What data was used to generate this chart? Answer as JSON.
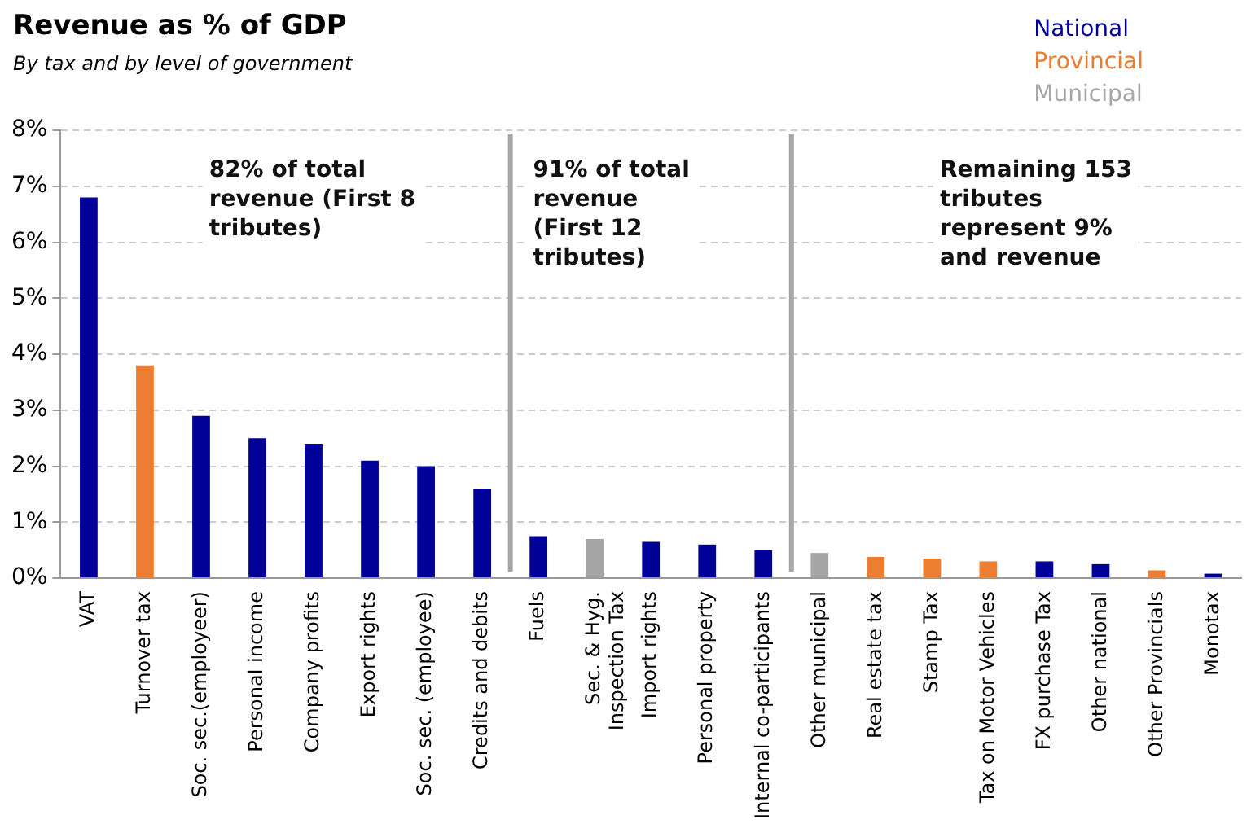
{
  "chart_data": {
    "type": "bar",
    "title": "Revenue as % of GDP",
    "subtitle": "By tax and by level of government",
    "categories": [
      "VAT",
      "Turnover tax",
      "Soc. sec.(employeer)",
      "Personal income",
      "Company profits",
      "Export rights",
      "Soc. sec. (employee)",
      "Credits and debits",
      "Fuels",
      "Sec. & Hyg.\nInspection Tax",
      "Import rights",
      "Personal property",
      "Internal co-participants",
      "Other municipal",
      "Real estate tax",
      "Stamp Tax",
      "Tax on Motor Vehicles",
      "FX purchase Tax",
      "Other national",
      "Other Provincials",
      "Monotax"
    ],
    "series": [
      {
        "name": "National",
        "color": "#000099",
        "values": [
          6.8,
          null,
          2.9,
          2.5,
          2.4,
          2.1,
          2.0,
          1.6,
          0.75,
          null,
          0.65,
          0.6,
          0.5,
          null,
          null,
          null,
          null,
          0.3,
          0.25,
          null,
          0.08
        ]
      },
      {
        "name": "Provincial",
        "color": "#ed7d31",
        "values": [
          null,
          3.8,
          null,
          null,
          null,
          null,
          null,
          null,
          null,
          null,
          null,
          null,
          null,
          null,
          0.38,
          0.35,
          0.3,
          null,
          null,
          0.14,
          null
        ]
      },
      {
        "name": "Municipal",
        "color": "#a6a6a6",
        "values": [
          null,
          null,
          null,
          null,
          null,
          null,
          null,
          null,
          null,
          0.7,
          null,
          null,
          null,
          0.45,
          null,
          null,
          null,
          null,
          null,
          null,
          null
        ]
      }
    ],
    "ylim": [
      0,
      8
    ],
    "yticks": [
      {
        "value": 0,
        "label": "0%"
      },
      {
        "value": 1,
        "label": "1%"
      },
      {
        "value": 2,
        "label": "2%"
      },
      {
        "value": 3,
        "label": "3%"
      },
      {
        "value": 4,
        "label": "4%"
      },
      {
        "value": 5,
        "label": "5%"
      },
      {
        "value": 6,
        "label": "6%"
      },
      {
        "value": 7,
        "label": "7%"
      },
      {
        "value": 8,
        "label": "8%"
      }
    ],
    "grid": "y",
    "legend": "top right",
    "annotations": [
      "82% of total\nrevenue (First 8\ntributes)",
      "91% of total\nrevenue\n(First 12\ntributes)",
      "Remaining 153\ntributes\nrepresent 9%\nand revenue"
    ]
  }
}
